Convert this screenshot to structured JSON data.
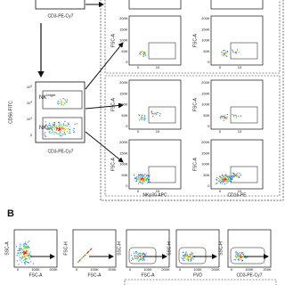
{
  "panel_a": {
    "top_x_label": "CD3-PE-Cy7",
    "gating": {
      "y_label": "CD56-FITC",
      "x_label": "CD3-PE-Cy7",
      "y_ticks": [
        {
          "base": "10",
          "exp": "5"
        },
        {
          "base": "10",
          "exp": "4"
        },
        {
          "base": "10",
          "exp": "3"
        },
        {
          "base": "0",
          "exp": ""
        }
      ],
      "gates": [
        {
          "text": "NK",
          "sup": "bright"
        },
        {
          "text": "NK",
          "sup": "dim"
        }
      ]
    },
    "y_label": "FSC-A",
    "y_ticks": [
      "200K",
      "150K",
      "100K",
      "50K",
      "0"
    ],
    "x_ticks": [
      "0",
      "10"
    ],
    "x_labels": [
      "NKp30-APC",
      "CD16-PE"
    ]
  },
  "panel_b": {
    "letter": "B",
    "x_ticks": [
      "0",
      "100K",
      "200K"
    ],
    "plots": [
      {
        "y_label": "SSC-A",
        "x_label": "FSC-A"
      },
      {
        "y_label": "FSC-H",
        "x_label": "FSC-A"
      },
      {
        "y_label": "SSC-H",
        "x_label": "FSC-A"
      },
      {
        "y_label": "SSC-H",
        "x_label": "FVD"
      },
      {
        "y_label": "SSC-H",
        "x_label": "CD3-PE-Cy7"
      }
    ]
  }
}
